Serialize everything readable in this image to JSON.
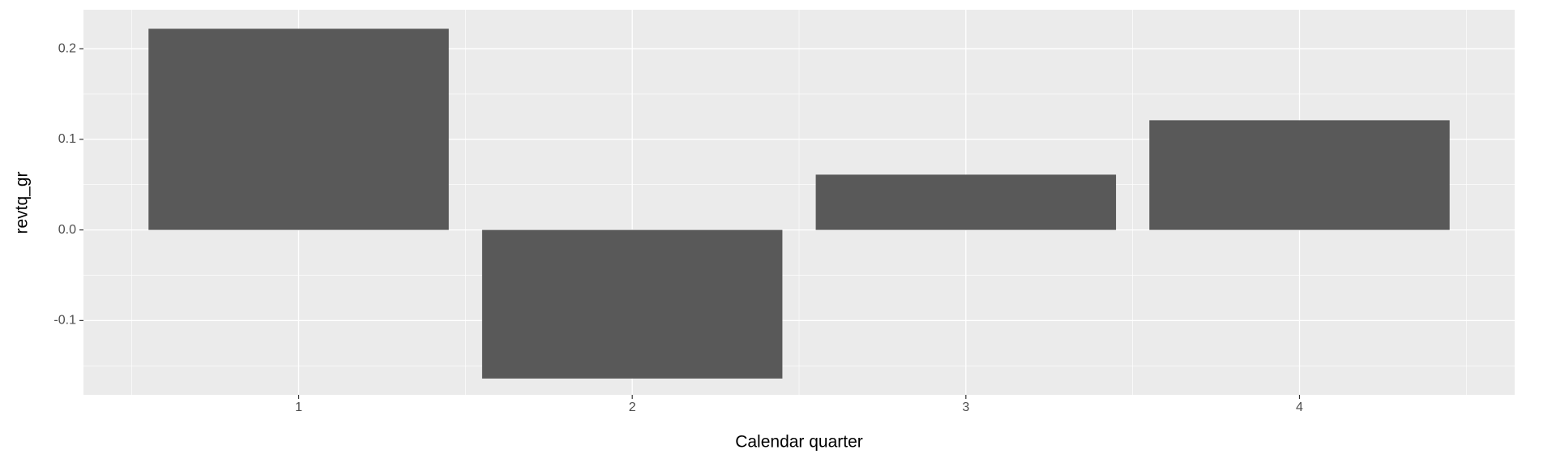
{
  "chart_data": {
    "type": "bar",
    "x_label": "Calendar quarter",
    "y_label": "revtq_gr",
    "x": [
      1,
      2,
      3,
      4
    ],
    "values": [
      0.222,
      -0.164,
      0.061,
      0.121
    ],
    "color": "#595959",
    "bar_width": 0.9,
    "xlim": [
      0.355,
      4.645
    ],
    "xticks": [
      1,
      2,
      3,
      4
    ],
    "ylim": [
      -0.182,
      0.243
    ],
    "yticks": [
      {
        "value": -0.1,
        "label": "-0.1"
      },
      {
        "value": 0,
        "label": "0.0"
      },
      {
        "value": 0.1,
        "label": "0.1"
      },
      {
        "value": 0.2,
        "label": "0.2"
      }
    ],
    "grid": true
  }
}
